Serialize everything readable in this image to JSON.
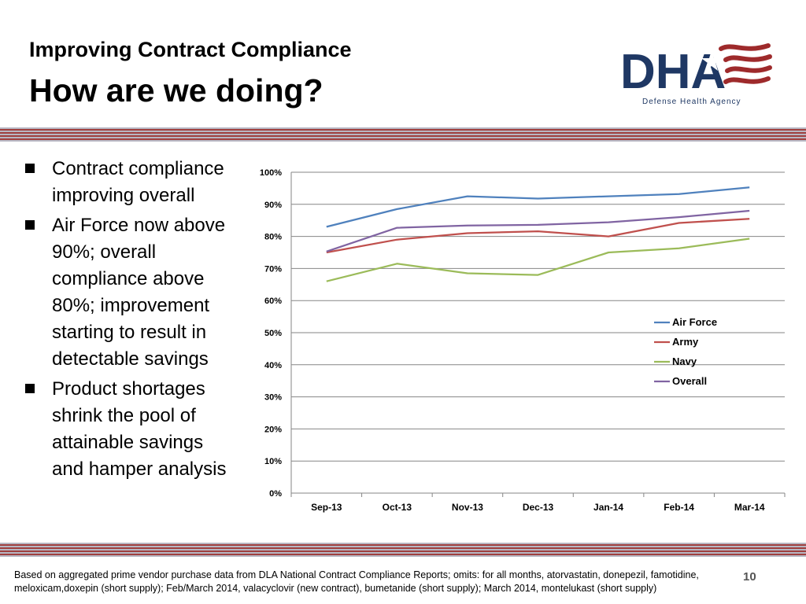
{
  "slide": {
    "title": "Improving Contract Compliance",
    "subtitle": "How are we doing?",
    "logo_text": "DHA",
    "logo_tagline": "Defense Health Agency",
    "bullets": [
      "Contract compliance improving overall",
      "Air Force now above 90%; overall compliance above 80%; improvement starting to result in detectable savings",
      "Product shortages shrink the pool of attainable savings and hamper analysis"
    ],
    "footnote": "Based on aggregated prime vendor purchase data from DLA National Contract Compliance Reports; omits: for all months, atorvastatin, donepezil, famotidine, meloxicam,doxepin (short supply); Feb/March 2014, valacyclovir (new contract), bumetanide (short supply); March 2014, montelukast (short supply)",
    "page_number": "10"
  },
  "colors": {
    "logo_navy": "#1f3864",
    "logo_red": "#9e2a2b",
    "band_red": "#a0403f",
    "band_gray": "#b7b7c3"
  },
  "chart_data": {
    "type": "line",
    "categories": [
      "Sep-13",
      "Oct-13",
      "Nov-13",
      "Dec-13",
      "Jan-14",
      "Feb-14",
      "Mar-14"
    ],
    "y_ticks": [
      "0%",
      "10%",
      "20%",
      "30%",
      "40%",
      "50%",
      "60%",
      "70%",
      "80%",
      "90%",
      "100%"
    ],
    "ylim": [
      0,
      100
    ],
    "grid": true,
    "legend_position": "right",
    "series": [
      {
        "name": "Air Force",
        "color": "#4f81bd",
        "values": [
          83,
          88.5,
          92.5,
          91.8,
          92.5,
          93.2,
          95.3
        ]
      },
      {
        "name": "Army",
        "color": "#c0504d",
        "values": [
          75,
          79,
          81,
          81.6,
          80,
          84.2,
          85.5
        ]
      },
      {
        "name": "Navy",
        "color": "#9bbb59",
        "values": [
          66,
          71.5,
          68.5,
          68,
          75,
          76.3,
          79.3
        ]
      },
      {
        "name": "Overall",
        "color": "#8064a2",
        "values": [
          75.3,
          82.7,
          83.4,
          83.6,
          84.4,
          86,
          88
        ]
      }
    ]
  }
}
